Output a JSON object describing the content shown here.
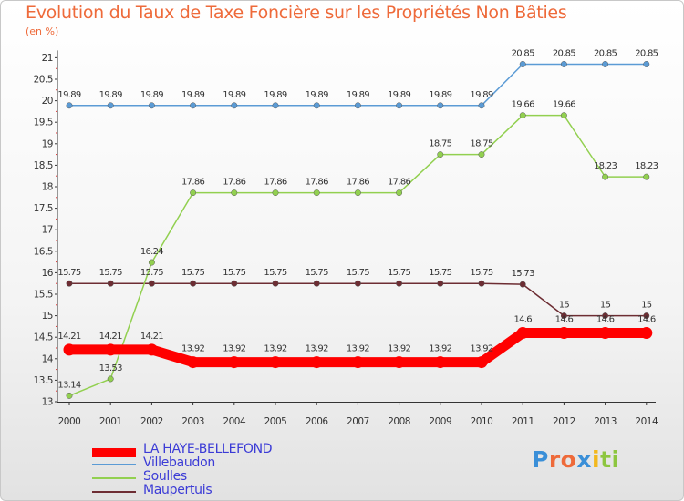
{
  "chart_data": {
    "type": "line",
    "title": "Evolution du Taux de Taxe Foncière sur les Propriétés Non Bâties",
    "ylabel": "(en %)",
    "xlabel": "",
    "x": [
      "2000",
      "2001",
      "2002",
      "2003",
      "2004",
      "2005",
      "2006",
      "2007",
      "2008",
      "2009",
      "2010",
      "2011",
      "2012",
      "2013",
      "2014"
    ],
    "ylim": [
      13,
      21
    ],
    "yticks": [
      "13",
      "13.5",
      "14",
      "14.5",
      "15",
      "15.5",
      "16",
      "16.5",
      "17",
      "17.5",
      "18",
      "18.5",
      "19",
      "19.5",
      "20",
      "20.5",
      "21"
    ],
    "grid": false,
    "legend_position": "bottom-left",
    "series": [
      {
        "name": "LA HAYE-BELLEFOND",
        "color": "#ff0000",
        "values": [
          14.21,
          14.21,
          14.21,
          13.92,
          13.92,
          13.92,
          13.92,
          13.92,
          13.92,
          13.92,
          13.92,
          14.6,
          14.6,
          14.6,
          14.6
        ],
        "labels": [
          "14.21",
          "14.21",
          "14.21",
          "13.92",
          "13.92",
          "13.92",
          "13.92",
          "13.92",
          "13.92",
          "13.92",
          "13.92",
          "14.6",
          "14.6",
          "14.6",
          "14.6"
        ]
      },
      {
        "name": "Villebaudon",
        "color": "#5b9bd5",
        "values": [
          19.89,
          19.89,
          19.89,
          19.89,
          19.89,
          19.89,
          19.89,
          19.89,
          19.89,
          19.89,
          19.89,
          20.85,
          20.85,
          20.85,
          20.85
        ],
        "labels": [
          "19.89",
          "19.89",
          "19.89",
          "19.89",
          "19.89",
          "19.89",
          "19.89",
          "19.89",
          "19.89",
          "19.89",
          "19.89",
          "20.85",
          "20.85",
          "20.85",
          "20.85"
        ]
      },
      {
        "name": "Soulles",
        "color": "#92d050",
        "values": [
          13.14,
          13.53,
          16.24,
          17.86,
          17.86,
          17.86,
          17.86,
          17.86,
          17.86,
          18.75,
          18.75,
          19.66,
          19.66,
          18.23,
          18.23
        ],
        "labels": [
          "13.14",
          "13.53",
          "16.24",
          "17.86",
          "17.86",
          "17.86",
          "17.86",
          "17.86",
          "17.86",
          "18.75",
          "18.75",
          "19.66",
          "19.66",
          "18.23",
          "18.23"
        ]
      },
      {
        "name": "Maupertuis",
        "color": "#6d2d33",
        "values": [
          15.75,
          15.75,
          15.75,
          15.75,
          15.75,
          15.75,
          15.75,
          15.75,
          15.75,
          15.75,
          15.75,
          15.73,
          15,
          15,
          15
        ],
        "labels": [
          "15.75",
          "15.75",
          "15.75",
          "15.75",
          "15.75",
          "15.75",
          "15.75",
          "15.75",
          "15.75",
          "15.75",
          "15.75",
          "15.73",
          "15",
          "15",
          "15"
        ]
      }
    ]
  },
  "branding": {
    "logo_letters": [
      "P",
      "r",
      "o",
      "x",
      "i",
      "t",
      "i"
    ],
    "logo_colors": [
      "#3a8fd8",
      "#ee6a3a",
      "#ee6a3a",
      "#3a8fd8",
      "#f2b81d",
      "#8dc63f",
      "#8dc63f"
    ]
  }
}
